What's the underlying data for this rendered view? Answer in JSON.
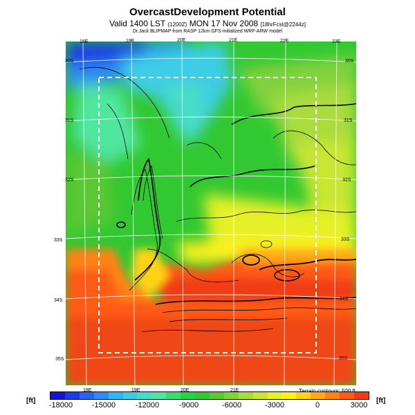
{
  "title": "OvercastDevelopment Potential",
  "subtitle_main": "Valid 1400 LST",
  "subtitle_utc": "(1200Z)",
  "subtitle_date": "MON 17 Nov 2008",
  "subtitle_fcst": "[18hrFcst@2244z]",
  "credit": "Dr.Jack BLIPMAP from RASP 12km GFS-initialized WRF-ARW model",
  "terrain_note": "Terrain contours: 500 ft",
  "unit_left": "[ft]",
  "unit_right": "[ft]",
  "lon_labels_top": [
    "18E",
    "19E",
    "20E",
    "21E",
    "22E",
    "23E"
  ],
  "lon_labels_bottom": [
    "18E",
    "19E",
    "20E",
    "21E"
  ],
  "lat_labels_left": [
    "30S",
    "31S",
    "32S",
    "33S",
    "34S",
    "35S"
  ],
  "lat_labels_right": [
    "30S",
    "31S",
    "32S",
    "33S",
    "34S",
    "35S"
  ],
  "colorbar": {
    "ticks": [
      "-18000",
      "-15000",
      "-12000",
      "-9000",
      "-6000",
      "-3000",
      "0",
      "3000"
    ],
    "colors": [
      "#1414d2",
      "#1e3ce6",
      "#2864f0",
      "#2d8cf5",
      "#32b4f5",
      "#3ccde6",
      "#46dcc8",
      "#50e6a0",
      "#3cdc6e",
      "#28d246",
      "#32c832",
      "#5ac832",
      "#82d23c",
      "#aadc3c",
      "#c8e632",
      "#e6f028",
      "#fff01e",
      "#ffd214",
      "#ffaa14",
      "#ff8214",
      "#ff5a14",
      "#f03c14"
    ]
  }
}
